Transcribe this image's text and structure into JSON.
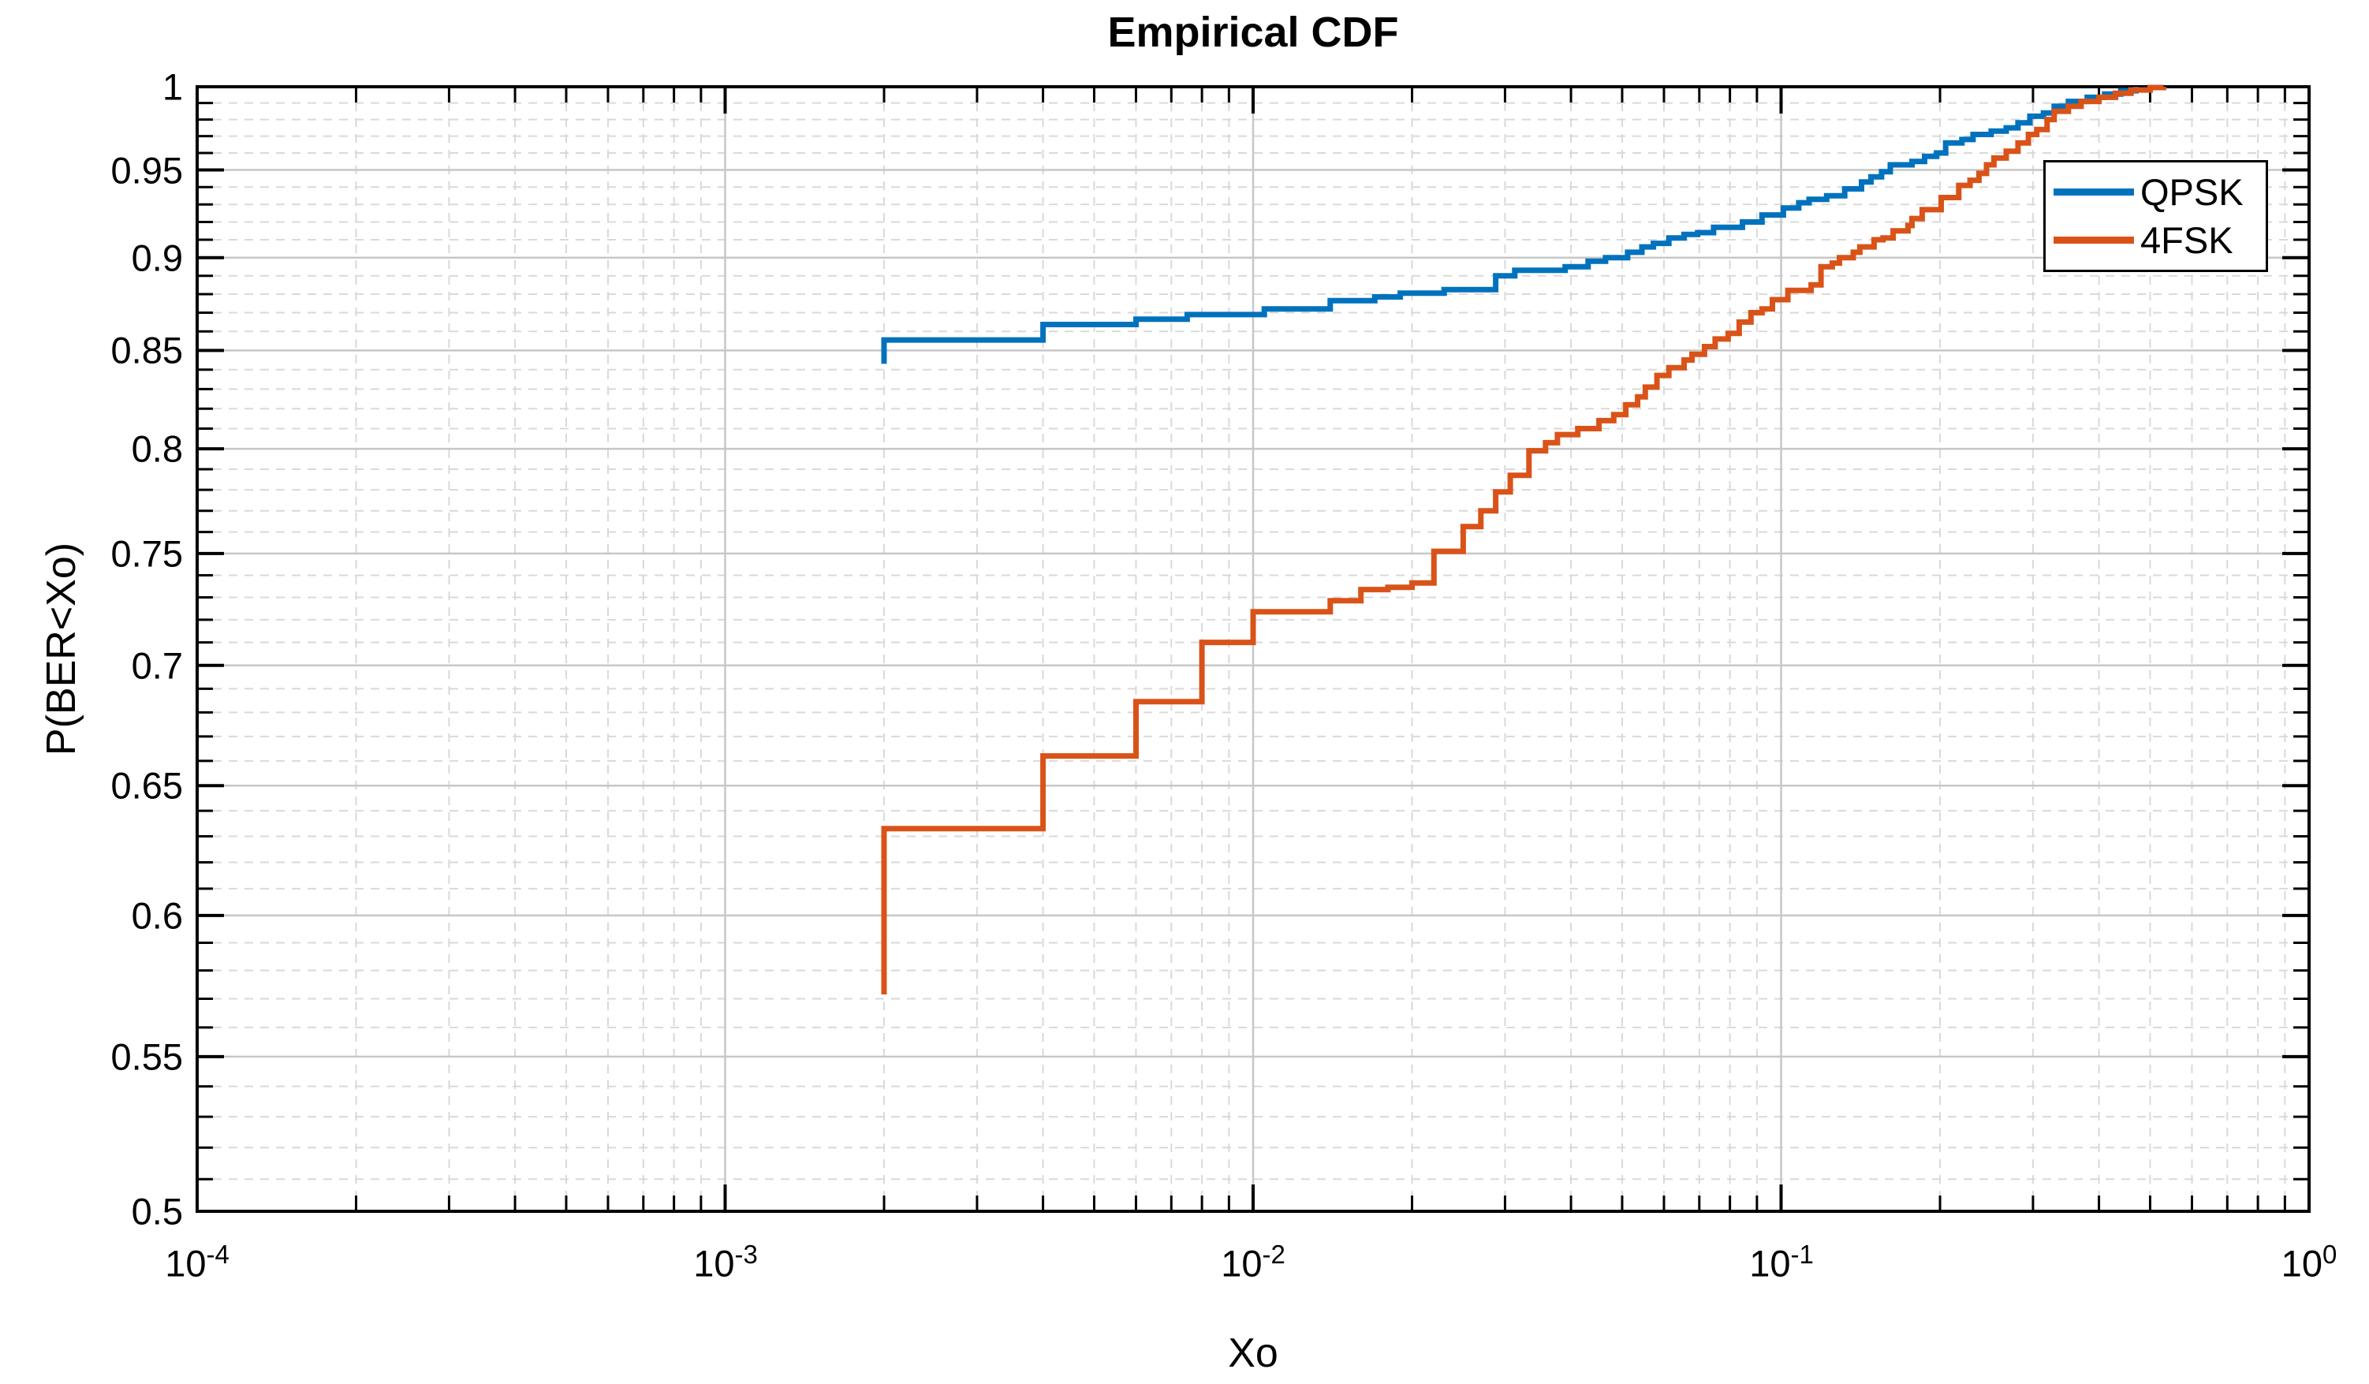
{
  "chart_data": {
    "type": "line",
    "subtype": "empirical-cdf-step",
    "title": "Empirical CDF",
    "xlabel": "Xo",
    "ylabel": "P(BER<Xo)",
    "x_scale": "log",
    "y_scale": "log",
    "xlim": [
      0.0001,
      1
    ],
    "ylim": [
      0.5,
      1
    ],
    "grid": "on",
    "legend_position": "northeast",
    "axis_color": "#000000",
    "major_grid_color": "#c7c7c7",
    "minor_grid_color": "#d9d9d9",
    "x_ticks": [
      {
        "value": 0.0001,
        "base": "10",
        "exp": "-4"
      },
      {
        "value": 0.001,
        "base": "10",
        "exp": "-3"
      },
      {
        "value": 0.01,
        "base": "10",
        "exp": "-2"
      },
      {
        "value": 0.1,
        "base": "10",
        "exp": "-1"
      },
      {
        "value": 1,
        "base": "10",
        "exp": "0"
      }
    ],
    "y_ticks": [
      {
        "value": 1,
        "label": "1"
      },
      {
        "value": 0.95,
        "label": "0.95"
      },
      {
        "value": 0.9,
        "label": "0.9"
      },
      {
        "value": 0.85,
        "label": "0.85"
      },
      {
        "value": 0.8,
        "label": "0.8"
      },
      {
        "value": 0.75,
        "label": "0.75"
      },
      {
        "value": 0.7,
        "label": "0.7"
      },
      {
        "value": 0.65,
        "label": "0.65"
      },
      {
        "value": 0.6,
        "label": "0.6"
      },
      {
        "value": 0.55,
        "label": "0.55"
      },
      {
        "value": 0.5,
        "label": "0.5"
      }
    ],
    "y_minor_step": 0.01,
    "x_minor_multiples": [
      2,
      3,
      4,
      5,
      6,
      7,
      8,
      9
    ],
    "series": [
      {
        "name": "QPSK",
        "color": "#0072BD",
        "start": [
          0.002,
          0.843
        ],
        "points": [
          [
            0.002,
            0.8555
          ],
          [
            0.004,
            0.8637
          ],
          [
            0.006,
            0.8665
          ],
          [
            0.0075,
            0.869
          ],
          [
            0.0105,
            0.872
          ],
          [
            0.014,
            0.8765
          ],
          [
            0.017,
            0.8785
          ],
          [
            0.019,
            0.8805
          ],
          [
            0.023,
            0.8825
          ],
          [
            0.0288,
            0.89
          ],
          [
            0.0313,
            0.893
          ],
          [
            0.039,
            0.895
          ],
          [
            0.0431,
            0.898
          ],
          [
            0.0465,
            0.9
          ],
          [
            0.0512,
            0.903
          ],
          [
            0.0545,
            0.906
          ],
          [
            0.0573,
            0.908
          ],
          [
            0.0613,
            0.911
          ],
          [
            0.0655,
            0.913
          ],
          [
            0.0695,
            0.914
          ],
          [
            0.0745,
            0.917
          ],
          [
            0.0845,
            0.92
          ],
          [
            0.092,
            0.924
          ],
          [
            0.101,
            0.928
          ],
          [
            0.108,
            0.931
          ],
          [
            0.113,
            0.933
          ],
          [
            0.122,
            0.935
          ],
          [
            0.132,
            0.939
          ],
          [
            0.142,
            0.943
          ],
          [
            0.148,
            0.946
          ],
          [
            0.155,
            0.949
          ],
          [
            0.161,
            0.953
          ],
          [
            0.177,
            0.955
          ],
          [
            0.187,
            0.958
          ],
          [
            0.197,
            0.96
          ],
          [
            0.205,
            0.966
          ],
          [
            0.22,
            0.968
          ],
          [
            0.231,
            0.971
          ],
          [
            0.25,
            0.973
          ],
          [
            0.267,
            0.975
          ],
          [
            0.281,
            0.978
          ],
          [
            0.296,
            0.982
          ],
          [
            0.314,
            0.984
          ],
          [
            0.329,
            0.988
          ],
          [
            0.35,
            0.991
          ],
          [
            0.38,
            0.9935
          ],
          [
            0.41,
            0.9955
          ],
          [
            0.44,
            0.9975
          ],
          [
            0.47,
            1.0
          ]
        ]
      },
      {
        "name": "4FSK",
        "color": "#D95319",
        "start": [
          0.002,
          0.5715
        ],
        "points": [
          [
            0.002,
            0.633
          ],
          [
            0.004,
            0.662
          ],
          [
            0.006,
            0.6845
          ],
          [
            0.008,
            0.71
          ],
          [
            0.01,
            0.7235
          ],
          [
            0.014,
            0.7285
          ],
          [
            0.016,
            0.7335
          ],
          [
            0.018,
            0.7345
          ],
          [
            0.02,
            0.7365
          ],
          [
            0.022,
            0.751
          ],
          [
            0.025,
            0.7625
          ],
          [
            0.027,
            0.77
          ],
          [
            0.0288,
            0.779
          ],
          [
            0.0307,
            0.787
          ],
          [
            0.0333,
            0.799
          ],
          [
            0.0358,
            0.803
          ],
          [
            0.0377,
            0.807
          ],
          [
            0.0412,
            0.81
          ],
          [
            0.0452,
            0.814
          ],
          [
            0.0482,
            0.817
          ],
          [
            0.0508,
            0.822
          ],
          [
            0.0535,
            0.826
          ],
          [
            0.0553,
            0.831
          ],
          [
            0.0582,
            0.837
          ],
          [
            0.0613,
            0.841
          ],
          [
            0.0655,
            0.845
          ],
          [
            0.0678,
            0.848
          ],
          [
            0.0716,
            0.852
          ],
          [
            0.075,
            0.856
          ],
          [
            0.0794,
            0.859
          ],
          [
            0.0833,
            0.865
          ],
          [
            0.0877,
            0.87
          ],
          [
            0.092,
            0.872
          ],
          [
            0.0963,
            0.877
          ],
          [
            0.103,
            0.882
          ],
          [
            0.114,
            0.885
          ],
          [
            0.119,
            0.895
          ],
          [
            0.125,
            0.897
          ],
          [
            0.129,
            0.9
          ],
          [
            0.137,
            0.903
          ],
          [
            0.141,
            0.906
          ],
          [
            0.15,
            0.91
          ],
          [
            0.156,
            0.911
          ],
          [
            0.163,
            0.915
          ],
          [
            0.174,
            0.918
          ],
          [
            0.177,
            0.922
          ],
          [
            0.185,
            0.927
          ],
          [
            0.201,
            0.934
          ],
          [
            0.217,
            0.941
          ],
          [
            0.228,
            0.944
          ],
          [
            0.237,
            0.948
          ],
          [
            0.245,
            0.953
          ],
          [
            0.253,
            0.957
          ],
          [
            0.267,
            0.961
          ],
          [
            0.281,
            0.966
          ],
          [
            0.294,
            0.971
          ],
          [
            0.305,
            0.974
          ],
          [
            0.319,
            0.98
          ],
          [
            0.329,
            0.985
          ],
          [
            0.35,
            0.988
          ],
          [
            0.37,
            0.991
          ],
          [
            0.4,
            0.9935
          ],
          [
            0.43,
            0.996
          ],
          [
            0.46,
            0.998
          ],
          [
            0.5,
            0.9995
          ],
          [
            0.53,
            1.0
          ]
        ]
      }
    ]
  }
}
